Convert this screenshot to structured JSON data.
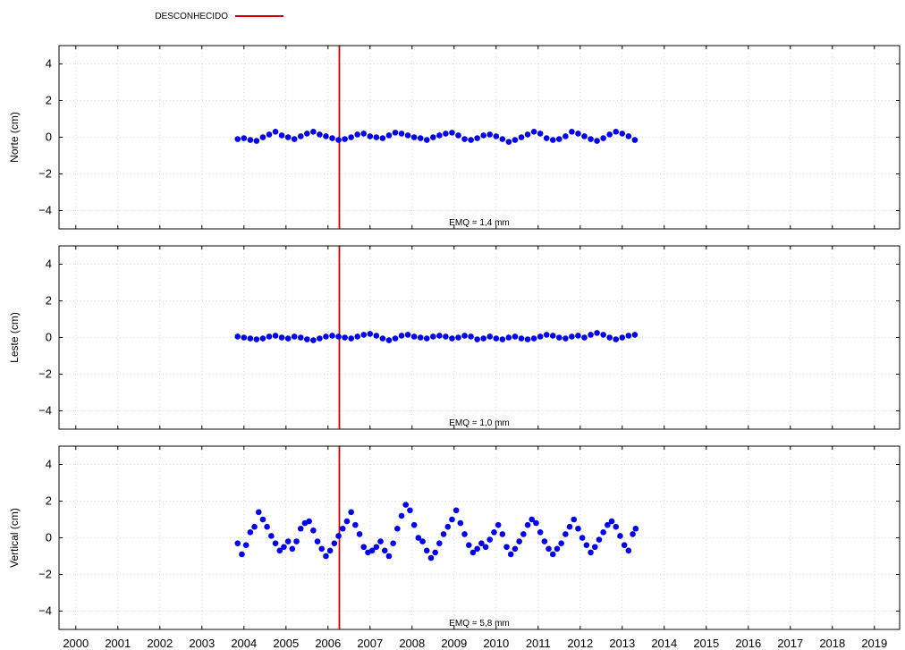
{
  "chart_data": {
    "type": "scatter",
    "legend": {
      "label": "DESCONHECIDO",
      "color": "#cc0000",
      "placement": "top-left"
    },
    "marker_color": "#0000ee",
    "event_line": {
      "x": 2006.27,
      "color": "#cc0000"
    },
    "x_range": [
      1999.6,
      2019.6
    ],
    "x_ticks": [
      2000,
      2001,
      2002,
      2003,
      2004,
      2005,
      2006,
      2007,
      2008,
      2009,
      2010,
      2011,
      2012,
      2013,
      2014,
      2015,
      2016,
      2017,
      2018,
      2019
    ],
    "grid": true,
    "panels": [
      {
        "ylabel": "Norte (cm)",
        "ylim": [
          -5,
          5
        ],
        "y_ticks": [
          -4,
          -2,
          0,
          2,
          4
        ],
        "stat_text": "EMQ = 1,4 mm",
        "x": [
          2003.85,
          2004.0,
          2004.15,
          2004.3,
          2004.45,
          2004.6,
          2004.75,
          2004.9,
          2005.05,
          2005.2,
          2005.35,
          2005.5,
          2005.65,
          2005.8,
          2005.95,
          2006.1,
          2006.25,
          2006.4,
          2006.55,
          2006.7,
          2006.85,
          2007.0,
          2007.15,
          2007.3,
          2007.45,
          2007.6,
          2007.75,
          2007.9,
          2008.05,
          2008.2,
          2008.35,
          2008.5,
          2008.65,
          2008.8,
          2008.95,
          2009.1,
          2009.25,
          2009.4,
          2009.55,
          2009.7,
          2009.85,
          2010.0,
          2010.15,
          2010.3,
          2010.45,
          2010.6,
          2010.75,
          2010.9,
          2011.05,
          2011.2,
          2011.35,
          2011.5,
          2011.65,
          2011.8,
          2011.95,
          2012.1,
          2012.25,
          2012.4,
          2012.55,
          2012.7,
          2012.85,
          2013.0,
          2013.15,
          2013.3
        ],
        "y": [
          -0.1,
          -0.05,
          -0.15,
          -0.2,
          0.0,
          0.15,
          0.3,
          0.1,
          0.0,
          -0.1,
          0.05,
          0.2,
          0.3,
          0.15,
          0.05,
          -0.05,
          -0.15,
          -0.1,
          0.0,
          0.15,
          0.2,
          0.05,
          0.0,
          -0.05,
          0.1,
          0.25,
          0.2,
          0.1,
          0.0,
          -0.05,
          -0.15,
          0.0,
          0.1,
          0.2,
          0.25,
          0.1,
          -0.1,
          -0.15,
          -0.05,
          0.1,
          0.15,
          0.05,
          -0.1,
          -0.25,
          -0.15,
          0.0,
          0.15,
          0.3,
          0.2,
          -0.05,
          -0.15,
          -0.1,
          0.05,
          0.3,
          0.2,
          0.05,
          -0.1,
          -0.2,
          -0.05,
          0.15,
          0.3,
          0.2,
          0.05,
          -0.15
        ]
      },
      {
        "ylabel": "Leste (cm)",
        "ylim": [
          -5,
          5
        ],
        "y_ticks": [
          -4,
          -2,
          0,
          2,
          4
        ],
        "stat_text": "EMQ = 1,0 mm",
        "x": [
          2003.85,
          2004.0,
          2004.15,
          2004.3,
          2004.45,
          2004.6,
          2004.75,
          2004.9,
          2005.05,
          2005.2,
          2005.35,
          2005.5,
          2005.65,
          2005.8,
          2005.95,
          2006.1,
          2006.25,
          2006.4,
          2006.55,
          2006.7,
          2006.85,
          2007.0,
          2007.15,
          2007.3,
          2007.45,
          2007.6,
          2007.75,
          2007.9,
          2008.05,
          2008.2,
          2008.35,
          2008.5,
          2008.65,
          2008.8,
          2008.95,
          2009.1,
          2009.25,
          2009.4,
          2009.55,
          2009.7,
          2009.85,
          2010.0,
          2010.15,
          2010.3,
          2010.45,
          2010.6,
          2010.75,
          2010.9,
          2011.05,
          2011.2,
          2011.35,
          2011.5,
          2011.65,
          2011.8,
          2011.95,
          2012.1,
          2012.25,
          2012.4,
          2012.55,
          2012.7,
          2012.85,
          2013.0,
          2013.15,
          2013.3
        ],
        "y": [
          0.05,
          0.0,
          -0.05,
          -0.1,
          -0.05,
          0.05,
          0.1,
          0.0,
          -0.05,
          0.05,
          0.0,
          -0.1,
          -0.15,
          -0.05,
          0.05,
          0.1,
          0.05,
          0.0,
          -0.05,
          0.05,
          0.15,
          0.2,
          0.1,
          -0.05,
          -0.15,
          -0.05,
          0.1,
          0.15,
          0.05,
          0.0,
          -0.05,
          0.05,
          0.1,
          0.05,
          -0.05,
          0.0,
          0.1,
          0.05,
          -0.1,
          -0.05,
          0.05,
          -0.05,
          -0.1,
          0.0,
          0.05,
          -0.05,
          -0.1,
          -0.05,
          0.05,
          0.15,
          0.1,
          0.0,
          -0.05,
          0.05,
          0.1,
          0.0,
          0.15,
          0.25,
          0.15,
          0.0,
          -0.1,
          0.0,
          0.1,
          0.15
        ]
      },
      {
        "ylabel": "Vertical (cm)",
        "ylim": [
          -5,
          5
        ],
        "y_ticks": [
          -4,
          -2,
          0,
          2,
          4
        ],
        "stat_text": "EMQ = 5,8 mm",
        "x": [
          2003.85,
          2003.95,
          2004.05,
          2004.15,
          2004.25,
          2004.35,
          2004.45,
          2004.55,
          2004.65,
          2004.75,
          2004.85,
          2004.95,
          2005.05,
          2005.15,
          2005.25,
          2005.35,
          2005.45,
          2005.55,
          2005.65,
          2005.75,
          2005.85,
          2005.95,
          2006.05,
          2006.15,
          2006.25,
          2006.35,
          2006.45,
          2006.55,
          2006.65,
          2006.75,
          2006.85,
          2006.95,
          2007.05,
          2007.15,
          2007.25,
          2007.35,
          2007.45,
          2007.55,
          2007.65,
          2007.75,
          2007.85,
          2007.95,
          2008.05,
          2008.15,
          2008.25,
          2008.35,
          2008.45,
          2008.55,
          2008.65,
          2008.75,
          2008.85,
          2008.95,
          2009.05,
          2009.15,
          2009.25,
          2009.35,
          2009.45,
          2009.55,
          2009.65,
          2009.75,
          2009.85,
          2009.95,
          2010.05,
          2010.15,
          2010.25,
          2010.35,
          2010.45,
          2010.55,
          2010.65,
          2010.75,
          2010.85,
          2010.95,
          2011.05,
          2011.15,
          2011.25,
          2011.35,
          2011.45,
          2011.55,
          2011.65,
          2011.75,
          2011.85,
          2011.95,
          2012.05,
          2012.15,
          2012.25,
          2012.35,
          2012.45,
          2012.55,
          2012.65,
          2012.75,
          2012.85,
          2012.95,
          2013.05,
          2013.15,
          2013.25,
          2013.32
        ],
        "y": [
          -0.3,
          -0.9,
          -0.4,
          0.3,
          0.6,
          1.4,
          1.0,
          0.6,
          0.1,
          -0.3,
          -0.7,
          -0.5,
          -0.2,
          -0.6,
          -0.2,
          0.5,
          0.8,
          0.9,
          0.4,
          -0.2,
          -0.6,
          -1.0,
          -0.7,
          -0.3,
          0.1,
          0.5,
          0.9,
          1.4,
          0.7,
          0.2,
          -0.5,
          -0.8,
          -0.7,
          -0.5,
          -0.2,
          -0.7,
          -1.0,
          -0.3,
          0.5,
          1.2,
          1.8,
          1.5,
          0.7,
          0.0,
          -0.2,
          -0.7,
          -1.1,
          -0.8,
          -0.3,
          0.2,
          0.6,
          1.0,
          1.5,
          0.8,
          0.2,
          -0.4,
          -0.8,
          -0.6,
          -0.3,
          -0.5,
          -0.1,
          0.3,
          0.7,
          0.2,
          -0.5,
          -0.9,
          -0.6,
          -0.2,
          0.2,
          0.7,
          1.0,
          0.8,
          0.3,
          -0.2,
          -0.6,
          -0.9,
          -0.6,
          -0.3,
          0.2,
          0.6,
          1.0,
          0.5,
          0.0,
          -0.4,
          -0.8,
          -0.5,
          -0.1,
          0.3,
          0.7,
          0.9,
          0.6,
          0.1,
          -0.4,
          -0.7,
          0.2,
          0.5
        ]
      }
    ]
  }
}
